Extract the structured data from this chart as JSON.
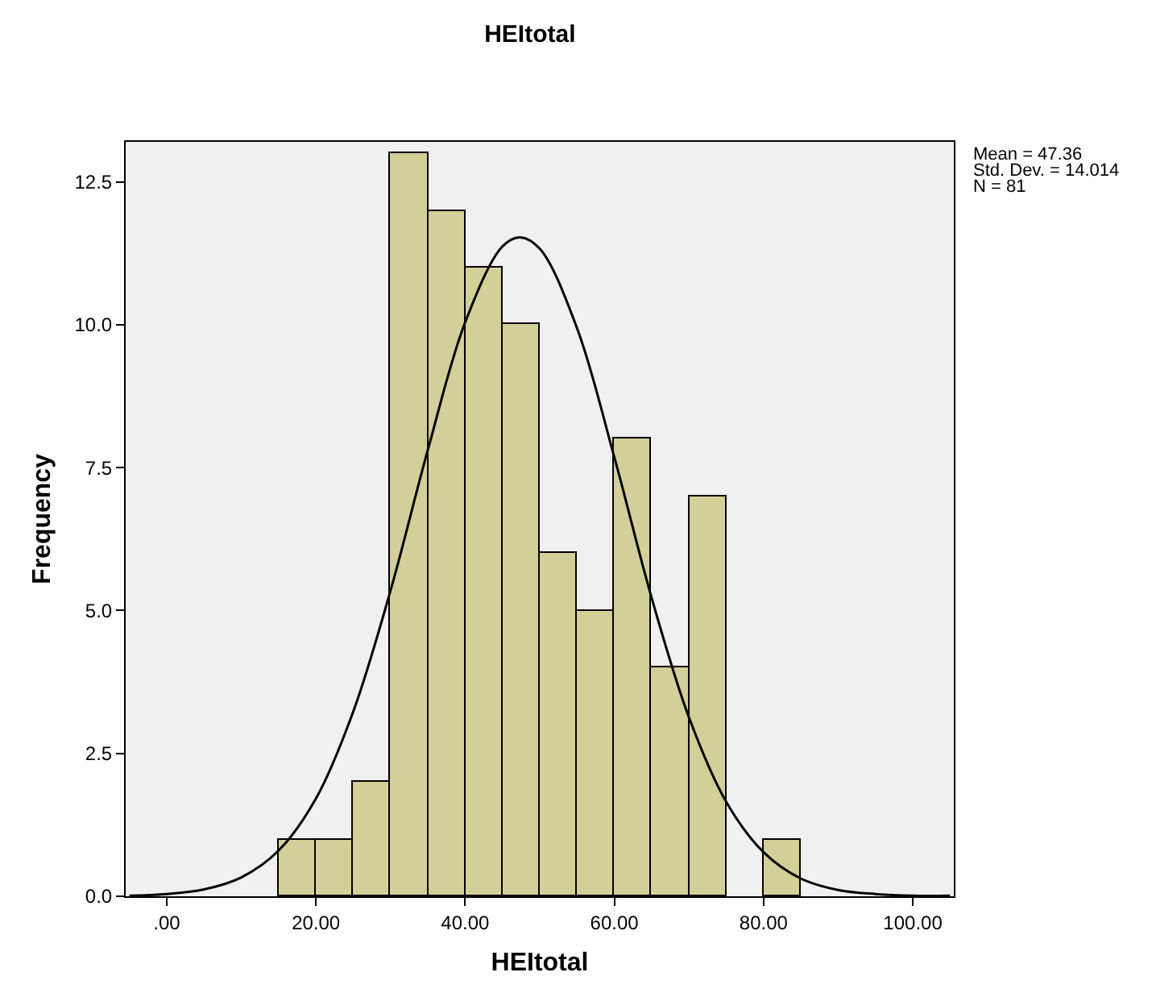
{
  "chart_data": {
    "type": "histogram",
    "title": "HEItotal",
    "xlabel": "HEItotal",
    "ylabel": "Frequency",
    "bins": [
      15,
      20,
      25,
      30,
      35,
      40,
      45,
      50,
      55,
      60,
      65,
      70,
      75,
      80,
      85
    ],
    "values": [
      1,
      1,
      2,
      13,
      12,
      11,
      10,
      6,
      5,
      8,
      4,
      7,
      0,
      1
    ],
    "color": "#d3cf98",
    "series": [
      {
        "type": "line",
        "color": "#000000",
        "x": [
          -5,
          0,
          5,
          10,
          15,
          20,
          25,
          30,
          35,
          40,
          45,
          47.36,
          50,
          55,
          60,
          65,
          70,
          75,
          80,
          85,
          90,
          95,
          100,
          105
        ],
        "values": [
          0.01,
          0.04,
          0.12,
          0.33,
          0.8,
          1.71,
          3.23,
          5.35,
          7.81,
          10.04,
          11.37,
          11.53,
          11.33,
          9.94,
          7.68,
          5.22,
          3.13,
          1.65,
          0.77,
          0.31,
          0.11,
          0.04,
          0.01,
          0.01
        ]
      }
    ],
    "xlim": [
      -5.5,
      105.5
    ],
    "xticks": [
      {
        "value": 0,
        "label": ".00"
      },
      {
        "value": 20,
        "label": "20.00"
      },
      {
        "value": 40,
        "label": "40.00"
      },
      {
        "value": 60,
        "label": "60.00"
      },
      {
        "value": 80,
        "label": "80.00"
      },
      {
        "value": 100,
        "label": "100.00"
      }
    ],
    "ylim": [
      0,
      13.2
    ],
    "yticks": [
      {
        "value": 0,
        "label": "0.0"
      },
      {
        "value": 2.5,
        "label": "2.5"
      },
      {
        "value": 5,
        "label": "5.0"
      },
      {
        "value": 7.5,
        "label": "7.5"
      },
      {
        "value": 10,
        "label": "10.0"
      },
      {
        "value": 12.5,
        "label": "12.5"
      }
    ],
    "annotations": [
      "Mean = 47.36",
      "Std. Dev. = 14.014",
      "N = 81"
    ],
    "grid": false,
    "line_style": "solid",
    "marker": "none"
  }
}
